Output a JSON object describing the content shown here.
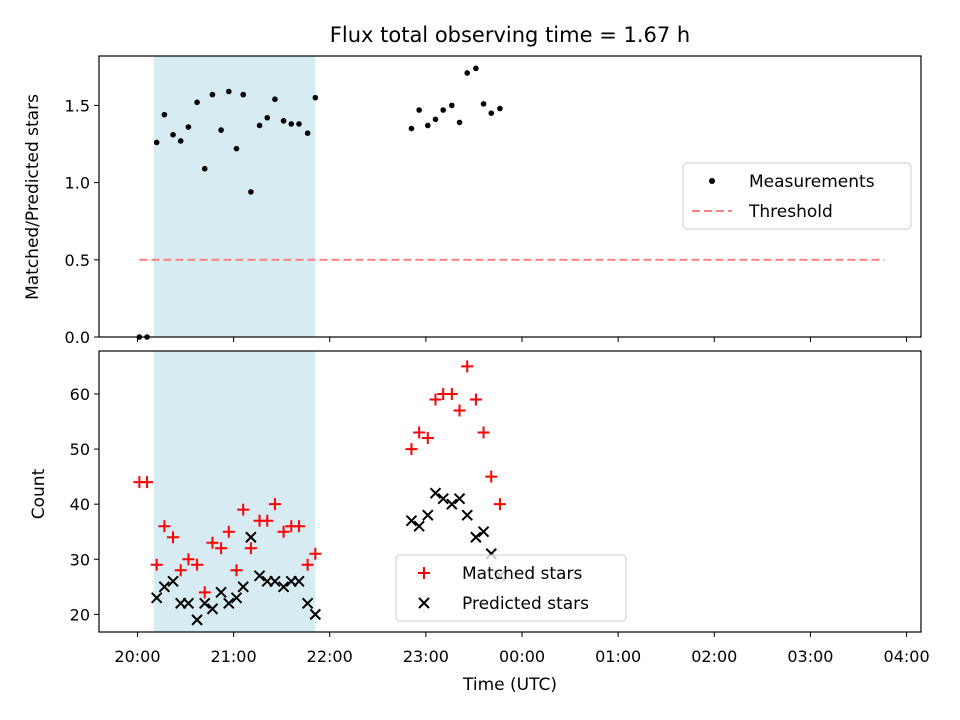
{
  "chart_data": [
    {
      "type": "scatter",
      "title": "Flux total observing time = 1.67 h",
      "xlabel": "",
      "ylabel": "Matched/Predicted stars",
      "ylim": [
        0,
        1.82
      ],
      "yticks": [
        0.0,
        0.5,
        1.0,
        1.5
      ],
      "ytick_labels": [
        "0.0",
        "0.5",
        "1.0",
        "1.5"
      ],
      "xlim_hours": [
        19.6,
        28.15
      ],
      "shaded_span_hours": [
        20.17,
        21.85
      ],
      "shaded_color": "#add8e6",
      "legend": {
        "position": "center-right",
        "entries": [
          "Measurements",
          "Threshold"
        ]
      },
      "series": [
        {
          "name": "Measurements",
          "marker": "dot",
          "color": "#000000",
          "x_hours": [
            20.02,
            20.1,
            20.2,
            20.28,
            20.37,
            20.45,
            20.53,
            20.62,
            20.7,
            20.78,
            20.87,
            20.95,
            21.03,
            21.1,
            21.18,
            21.27,
            21.35,
            21.43,
            21.52,
            21.6,
            21.68,
            21.77,
            21.85,
            22.85,
            22.93,
            23.02,
            23.1,
            23.18,
            23.27,
            23.35,
            23.43,
            23.52,
            23.6,
            23.68,
            23.77
          ],
          "y": [
            0.0,
            0.0,
            1.26,
            1.44,
            1.31,
            1.27,
            1.36,
            1.52,
            1.09,
            1.57,
            1.34,
            1.59,
            1.22,
            1.57,
            0.94,
            1.37,
            1.42,
            1.54,
            1.4,
            1.38,
            1.38,
            1.32,
            1.55,
            1.35,
            1.47,
            1.37,
            1.41,
            1.47,
            1.5,
            1.39,
            1.71,
            1.74,
            1.51,
            1.45,
            1.48
          ]
        },
        {
          "name": "Threshold",
          "style": "dashed",
          "color": "#ff7f7f",
          "x_hours": [
            20.02,
            27.77
          ],
          "y": [
            0.5,
            0.5
          ]
        }
      ]
    },
    {
      "type": "scatter",
      "title": "",
      "xlabel": "Time (UTC)",
      "ylabel": "Count",
      "ylim": [
        16.8,
        67.8
      ],
      "yticks": [
        20,
        30,
        40,
        50,
        60
      ],
      "ytick_labels": [
        "20",
        "30",
        "40",
        "50",
        "60"
      ],
      "xlim_hours": [
        19.6,
        28.15
      ],
      "xticks_hours": [
        20,
        21,
        22,
        23,
        24,
        25,
        26,
        27,
        28
      ],
      "xtick_labels": [
        "20:00",
        "21:00",
        "22:00",
        "23:00",
        "00:00",
        "01:00",
        "02:00",
        "03:00",
        "04:00"
      ],
      "shaded_span_hours": [
        20.17,
        21.85
      ],
      "shaded_color": "#add8e6",
      "legend": {
        "position": "lower-center",
        "entries": [
          "Matched stars",
          "Predicted stars"
        ]
      },
      "series": [
        {
          "name": "Matched stars",
          "marker": "plus",
          "color": "#ff0000",
          "x_hours": [
            20.02,
            20.1,
            20.2,
            20.28,
            20.37,
            20.45,
            20.53,
            20.62,
            20.7,
            20.78,
            20.87,
            20.95,
            21.03,
            21.1,
            21.18,
            21.27,
            21.35,
            21.43,
            21.52,
            21.6,
            21.68,
            21.77,
            21.85,
            22.85,
            22.93,
            23.02,
            23.1,
            23.18,
            23.27,
            23.35,
            23.43,
            23.52,
            23.6,
            23.68,
            23.77
          ],
          "y": [
            44,
            44,
            29,
            36,
            34,
            28,
            30,
            29,
            24,
            33,
            32,
            35,
            28,
            39,
            32,
            37,
            37,
            40,
            35,
            36,
            36,
            29,
            31,
            50,
            53,
            52,
            59,
            60,
            60,
            57,
            65,
            59,
            53,
            45,
            40
          ]
        },
        {
          "name": "Predicted stars",
          "marker": "x",
          "color": "#000000",
          "x_hours": [
            20.2,
            20.28,
            20.37,
            20.45,
            20.53,
            20.62,
            20.7,
            20.78,
            20.87,
            20.95,
            21.03,
            21.1,
            21.18,
            21.27,
            21.35,
            21.43,
            21.52,
            21.6,
            21.68,
            21.77,
            21.85,
            22.85,
            22.93,
            23.02,
            23.1,
            23.18,
            23.27,
            23.35,
            23.43,
            23.52,
            23.6,
            23.68,
            23.77
          ],
          "y": [
            23,
            25,
            26,
            22,
            22,
            19,
            22,
            21,
            24,
            22,
            23,
            25,
            34,
            27,
            26,
            26,
            25,
            26,
            26,
            22,
            20,
            37,
            36,
            38,
            42,
            41,
            40,
            41,
            38,
            34,
            35,
            31,
            27
          ]
        }
      ]
    }
  ]
}
